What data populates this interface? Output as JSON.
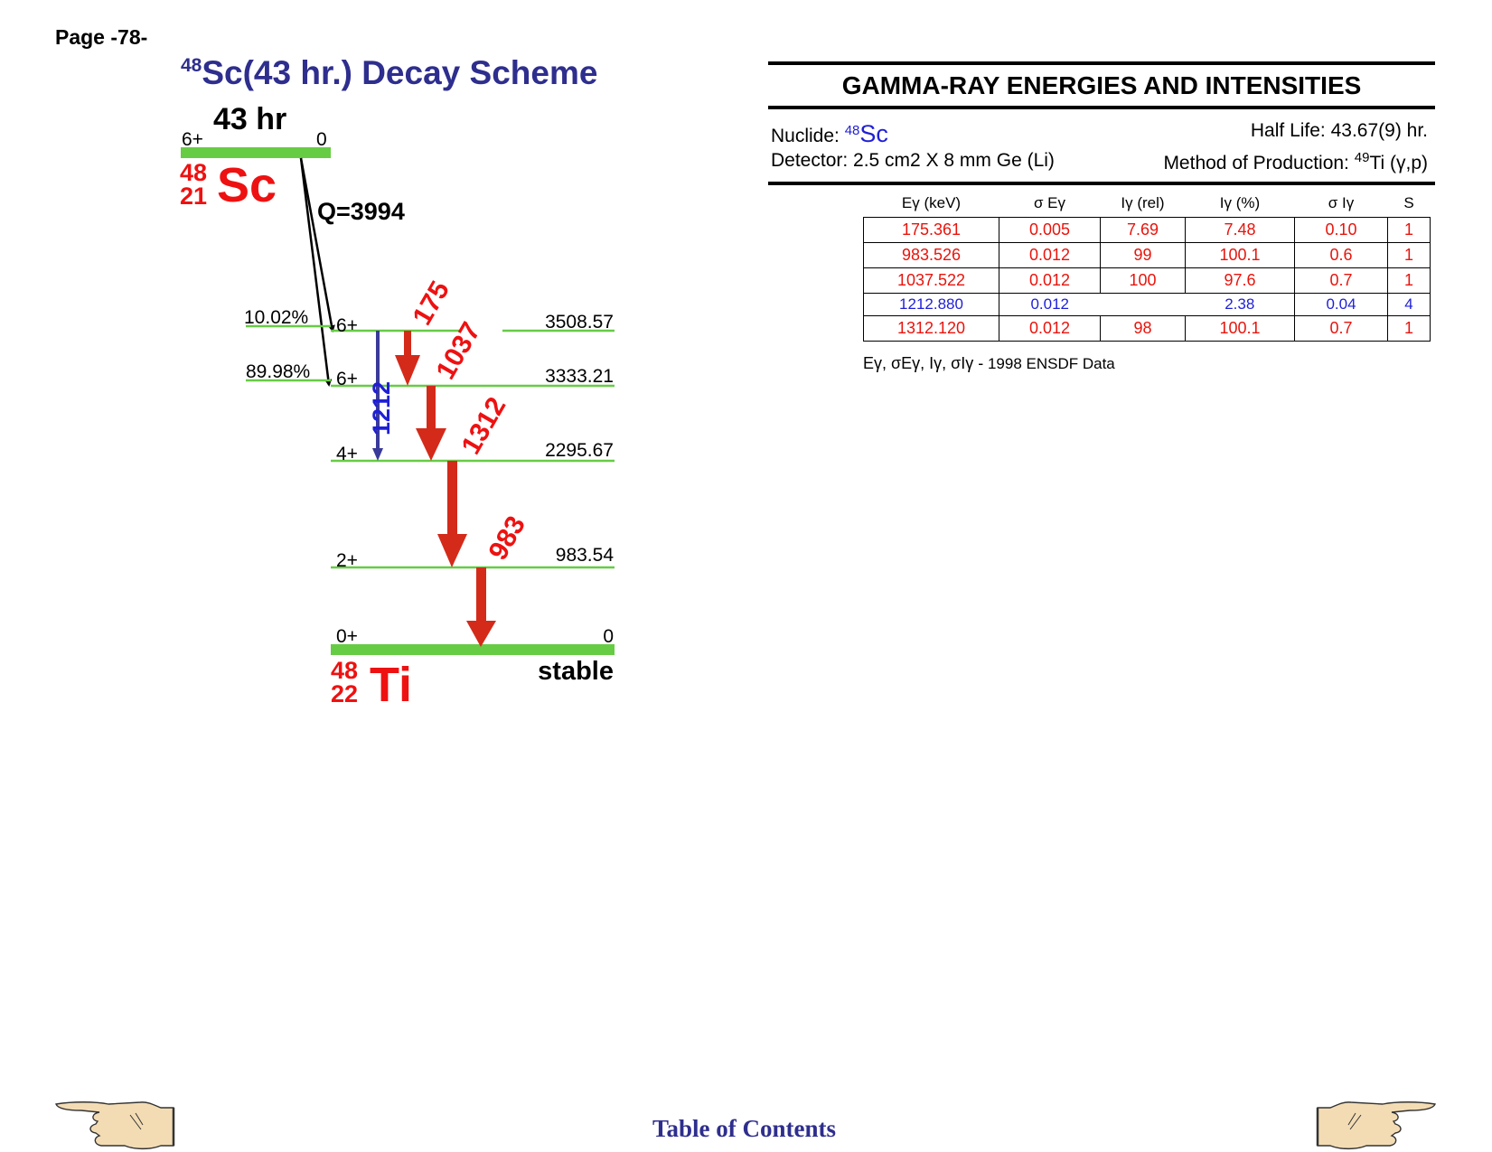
{
  "page_label": "Page -78-",
  "title": {
    "sup": "48",
    "text": "Sc(43 hr.) Decay Scheme"
  },
  "scheme": {
    "parent": {
      "halflife": "43 hr",
      "spin": "6+",
      "energy": "0",
      "mass": "48",
      "z": "21",
      "symbol": "Sc",
      "q_value": "Q=3994"
    },
    "daughter": {
      "mass": "48",
      "z": "22",
      "symbol": "Ti",
      "stability": "stable"
    },
    "levels": [
      {
        "spin": "6+",
        "energy": "3508.57",
        "branch": "10.02%"
      },
      {
        "spin": "6+",
        "energy": "3333.21",
        "branch": "89.98%"
      },
      {
        "spin": "4+",
        "energy": "2295.67",
        "branch": ""
      },
      {
        "spin": "2+",
        "energy": "983.54",
        "branch": ""
      },
      {
        "spin": "0+",
        "energy": "0",
        "branch": ""
      }
    ],
    "transitions": [
      {
        "label": "175",
        "from": "3508.57",
        "to": "3333.21",
        "color": "#d42a1a"
      },
      {
        "label": "1037",
        "from": "3333.21",
        "to": "2295.67",
        "color": "#d42a1a"
      },
      {
        "label": "1312",
        "from": "2295.67",
        "to": "983.54",
        "color": "#d42a1a"
      },
      {
        "label": "983",
        "from": "983.54",
        "to": "0",
        "color": "#d42a1a"
      },
      {
        "label": "1212",
        "from": "3508.57",
        "to": "2295.67",
        "color": "#1f1fd6"
      }
    ],
    "colors": {
      "level": "#66cc44",
      "strong": "#d42a1a",
      "weak": "#1f1fd6",
      "nucleus": "#ee1111"
    }
  },
  "gamma_panel": {
    "title": "GAMMA-RAY ENERGIES AND INTENSITIES",
    "nuclide_label": "Nuclide:",
    "nuclide_mass": "48",
    "nuclide_symbol": "Sc",
    "halflife": "Half Life: 43.67(9) hr.",
    "detector": "Detector: 2.5 cm2 X 8 mm Ge (Li)",
    "production_label": "Method of Production:",
    "production_mass": "49",
    "production_reaction": "Ti (γ,p)",
    "headers": [
      "Eγ (keV)",
      "σ Eγ",
      "Iγ (rel)",
      "Iγ (%)",
      "σ Iγ",
      "S"
    ],
    "rows": [
      [
        "175.361",
        "0.005",
        "7.69",
        "7.48",
        "0.10",
        "1"
      ],
      [
        "983.526",
        "0.012",
        "99",
        "100.1",
        "0.6",
        "1"
      ],
      [
        "1037.522",
        "0.012",
        "100",
        "97.6",
        "0.7",
        "1"
      ],
      [
        "1212.880",
        "0.012",
        "",
        "2.38",
        "0.04",
        "4"
      ],
      [
        "1312.120",
        "0.012",
        "98",
        "100.1",
        "0.7",
        "1"
      ]
    ],
    "footnote_symbols": "Eγ, σEγ, Iγ, σIγ -",
    "footnote_source": "1998 ENSDF Data"
  },
  "footer": {
    "toc": "Table of Contents",
    "left_nav": "pointing-hand-left-icon",
    "right_nav": "pointing-hand-right-icon"
  }
}
